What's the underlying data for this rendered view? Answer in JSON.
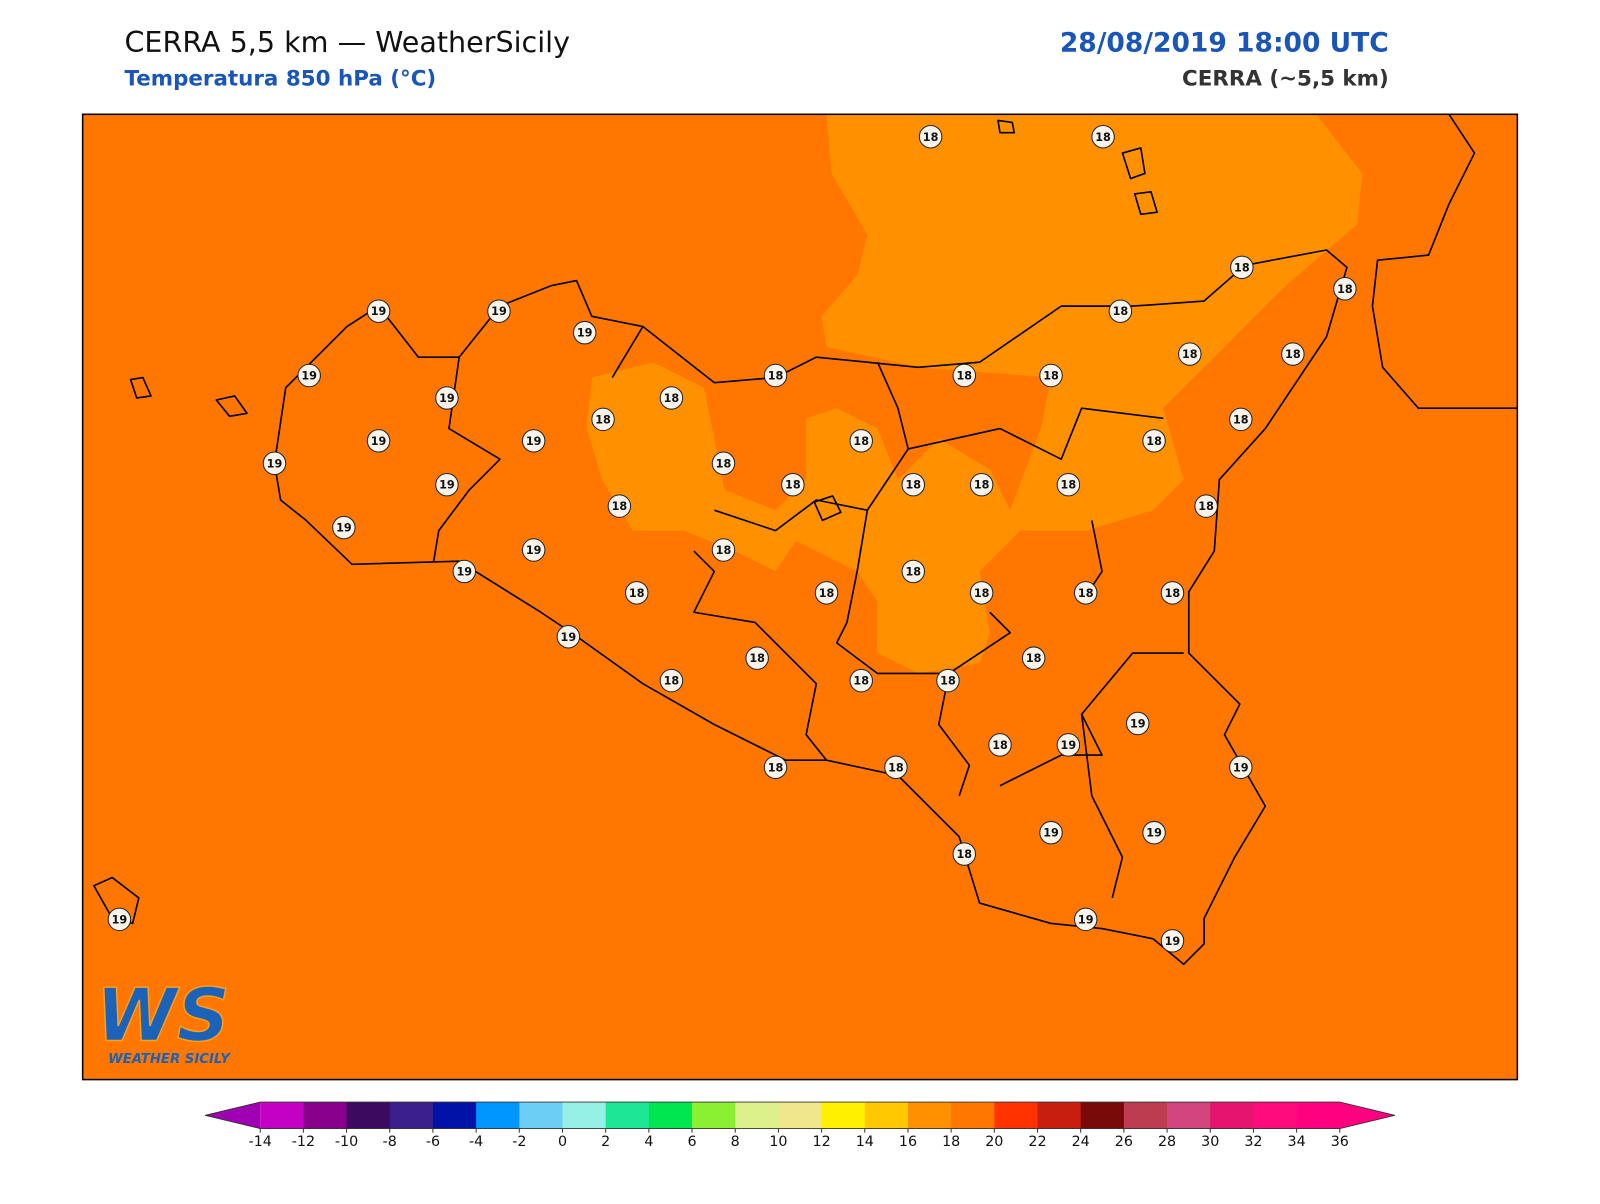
{
  "header": {
    "title": "CERRA 5,5 km — WeatherSicily",
    "subtitle": "Temperatura 850 hPa (°C)",
    "datetime": "28/08/2019 18:00 UTC",
    "model": "CERRA (~5,5 km)"
  },
  "map": {
    "fill_color": "#ff7700",
    "light_fill_color": "#ff9000",
    "stations": [
      18,
      18,
      18,
      18,
      19,
      19,
      19,
      18,
      18,
      18,
      19,
      18,
      18,
      18,
      19,
      18,
      18,
      18,
      19,
      19,
      18,
      18,
      19,
      18,
      19,
      18,
      18,
      18,
      18,
      18,
      18,
      19,
      19,
      18,
      19,
      18,
      18,
      18,
      18,
      18,
      18,
      19,
      18,
      18,
      18,
      18,
      18,
      19,
      18,
      19,
      19,
      18,
      18,
      19,
      19,
      18,
      19,
      19,
      19
    ]
  },
  "logo": {
    "text": "WS",
    "tagline": "WEATHER SICILY"
  },
  "colorbar": {
    "ticks": [
      -14,
      -12,
      -10,
      -8,
      -6,
      -4,
      -2,
      0,
      2,
      4,
      6,
      8,
      10,
      12,
      14,
      16,
      18,
      20,
      22,
      24,
      26,
      28,
      30,
      32,
      34,
      36
    ],
    "colors": [
      "#c400c4",
      "#88008c",
      "#3c0a5f",
      "#3a1f8a",
      "#0012a8",
      "#0096ff",
      "#6ccdf5",
      "#96f0e6",
      "#1de696",
      "#00e650",
      "#8cf032",
      "#dcf08c",
      "#f0e68c",
      "#fff000",
      "#ffc800",
      "#ff9000",
      "#ff7700",
      "#ff3200",
      "#c81e0f",
      "#780a0a",
      "#be3c50",
      "#d2467d",
      "#e6146e",
      "#ff0a7d",
      "#ff0080"
    ],
    "under_color": "#a000b4",
    "over_color": "#ff0080"
  }
}
